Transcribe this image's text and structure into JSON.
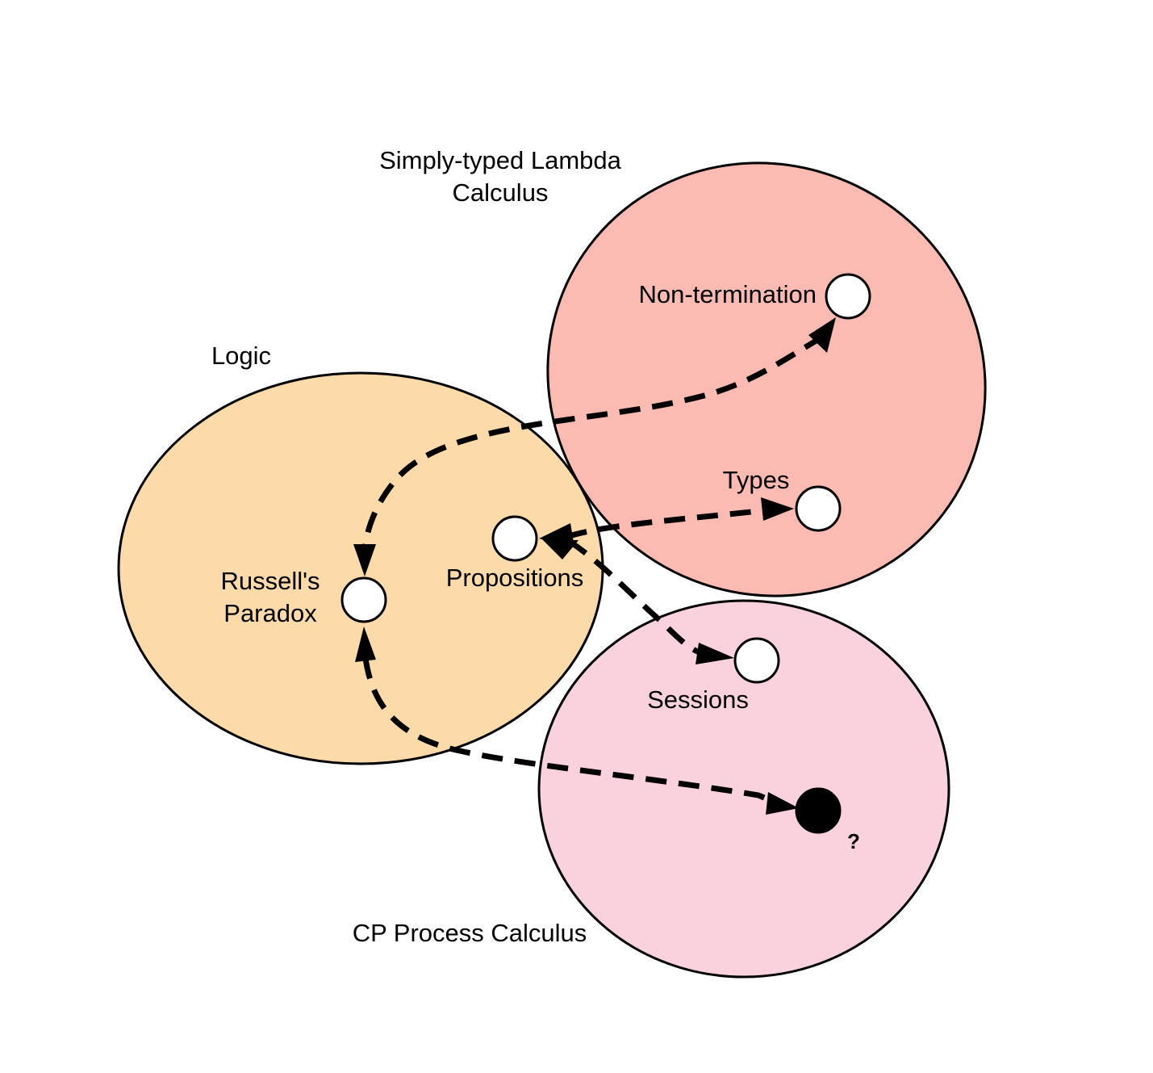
{
  "colors": {
    "logic_fill": "#fcdaa9",
    "lambda_fill": "#fbbab2",
    "cp_fill": "#f9d2dd",
    "stroke": "#000000",
    "open_node_fill": "#ffffff",
    "filled_node_fill": "#000000"
  },
  "regions": {
    "lambda": {
      "title_line1": "Simply-typed Lambda",
      "title_line2": "Calculus"
    },
    "logic": {
      "title": "Logic"
    },
    "cp": {
      "title": "CP Process Calculus"
    }
  },
  "nodes": {
    "non_termination": {
      "label": "Non-termination"
    },
    "types": {
      "label": "Types"
    },
    "propositions": {
      "label": "Propositions"
    },
    "russells_paradox": {
      "label_line1": "Russell's",
      "label_line2": "Paradox"
    },
    "sessions": {
      "label": "Sessions"
    },
    "unknown": {
      "label": "?"
    }
  },
  "edges": [
    {
      "from": "non_termination",
      "to": "russells_paradox",
      "style": "dashed",
      "arrows": "both"
    },
    {
      "from": "propositions",
      "to": "types",
      "style": "dashed",
      "arrows": "both"
    },
    {
      "from": "propositions",
      "to": "sessions",
      "style": "dashed",
      "arrows": "both"
    },
    {
      "from": "russells_paradox",
      "to": "unknown",
      "style": "dashed",
      "arrows": "both"
    }
  ]
}
